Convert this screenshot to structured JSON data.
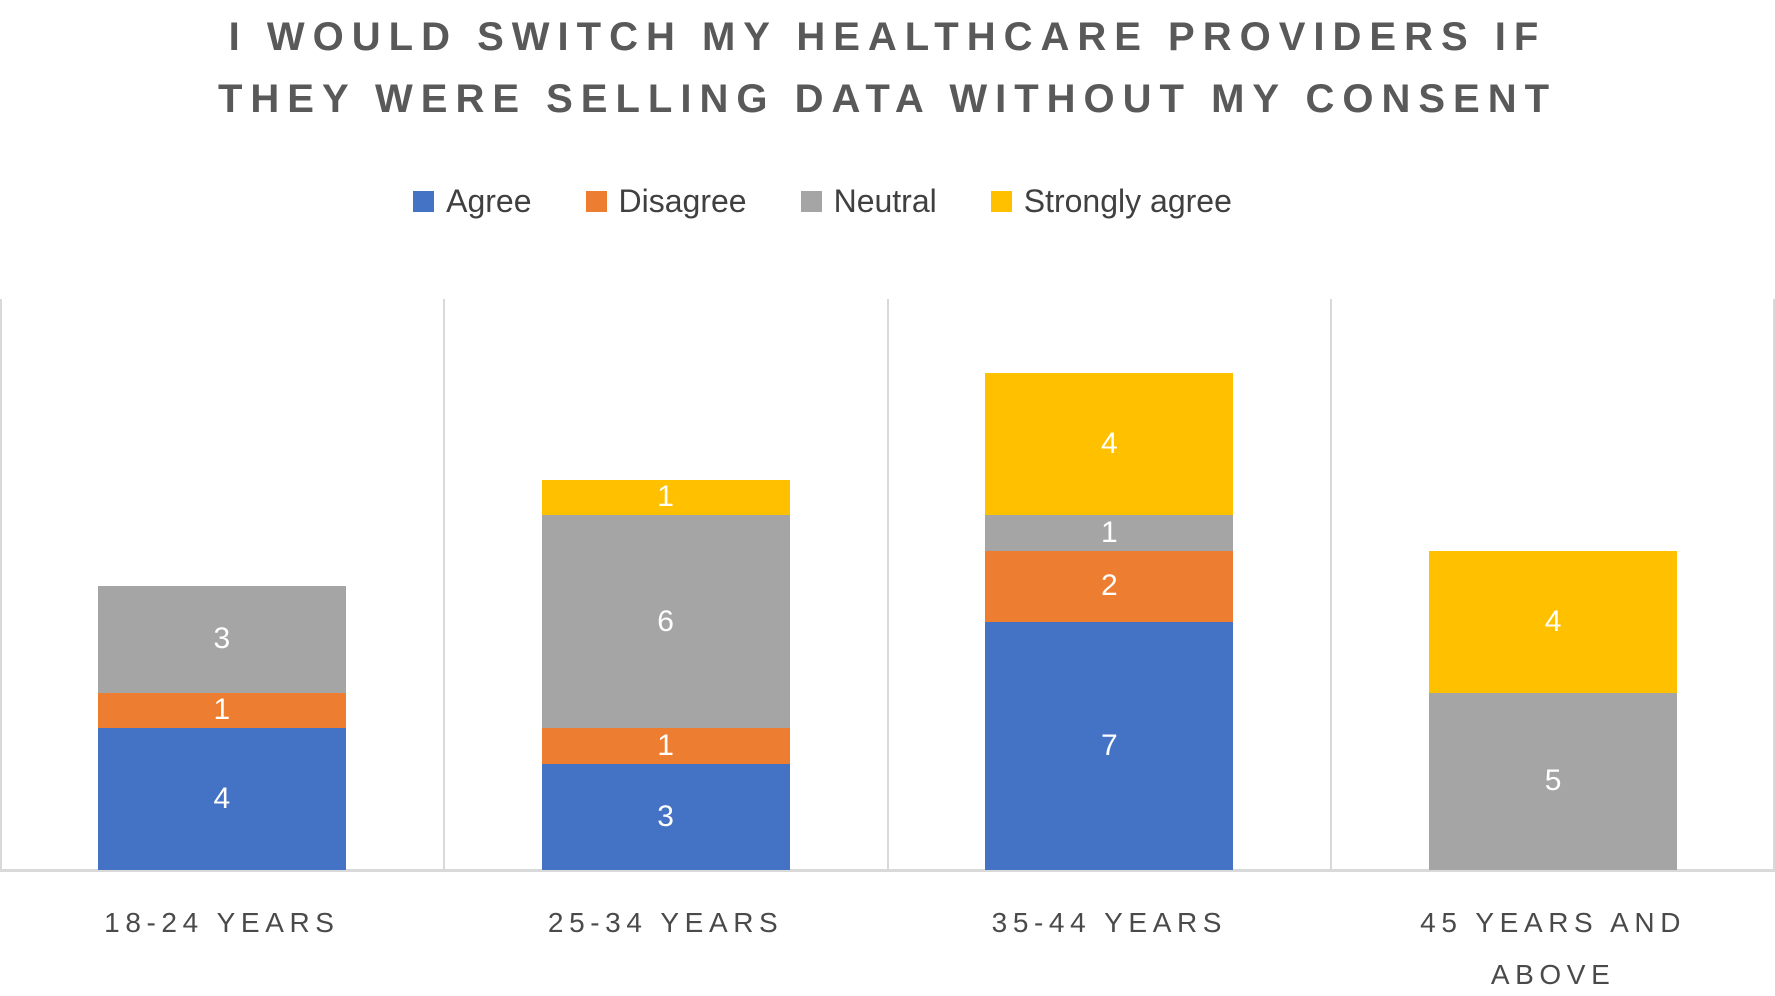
{
  "title": {
    "line1": "I WOULD SWITCH MY HEALTHCARE PROVIDERS IF",
    "line2": "THEY WERE SELLING DATA WITHOUT MY CONSENT"
  },
  "legend": [
    {
      "label": "Agree",
      "color": "#4472C4"
    },
    {
      "label": "Disagree",
      "color": "#ED7D31"
    },
    {
      "label": "Neutral",
      "color": "#A5A5A5"
    },
    {
      "label": "Strongly agree",
      "color": "#FFC000"
    }
  ],
  "colors": {
    "title_text": "#595959",
    "label_text": "#4a4a4a",
    "data_label_text": "#FFFFFF",
    "gridline": "#D9D9D9",
    "background": "#FFFFFF"
  },
  "chart_data": {
    "type": "bar",
    "stacked": true,
    "title": "I WOULD SWITCH MY HEALTHCARE PROVIDERS IF THEY WERE SELLING DATA WITHOUT MY CONSENT",
    "categories": [
      "18-24 YEARS",
      "25-34 YEARS",
      "35-44 YEARS",
      "45 YEARS AND ABOVE"
    ],
    "series": [
      {
        "name": "Agree",
        "color": "#4472C4",
        "values": [
          4,
          3,
          7,
          0
        ]
      },
      {
        "name": "Disagree",
        "color": "#ED7D31",
        "values": [
          1,
          1,
          2,
          0
        ]
      },
      {
        "name": "Neutral",
        "color": "#A5A5A5",
        "values": [
          3,
          6,
          1,
          5
        ]
      },
      {
        "name": "Strongly agree",
        "color": "#FFC000",
        "values": [
          0,
          1,
          4,
          4
        ]
      }
    ],
    "totals": [
      8,
      11,
      14,
      9
    ],
    "xlabel": "",
    "ylabel": "",
    "ylim": [
      0,
      16
    ],
    "y_axis_labels_shown": false,
    "grid": "vertical-category-separators",
    "legend_position": "top-center",
    "data_labels": "white numbers centered in each nonzero segment"
  }
}
